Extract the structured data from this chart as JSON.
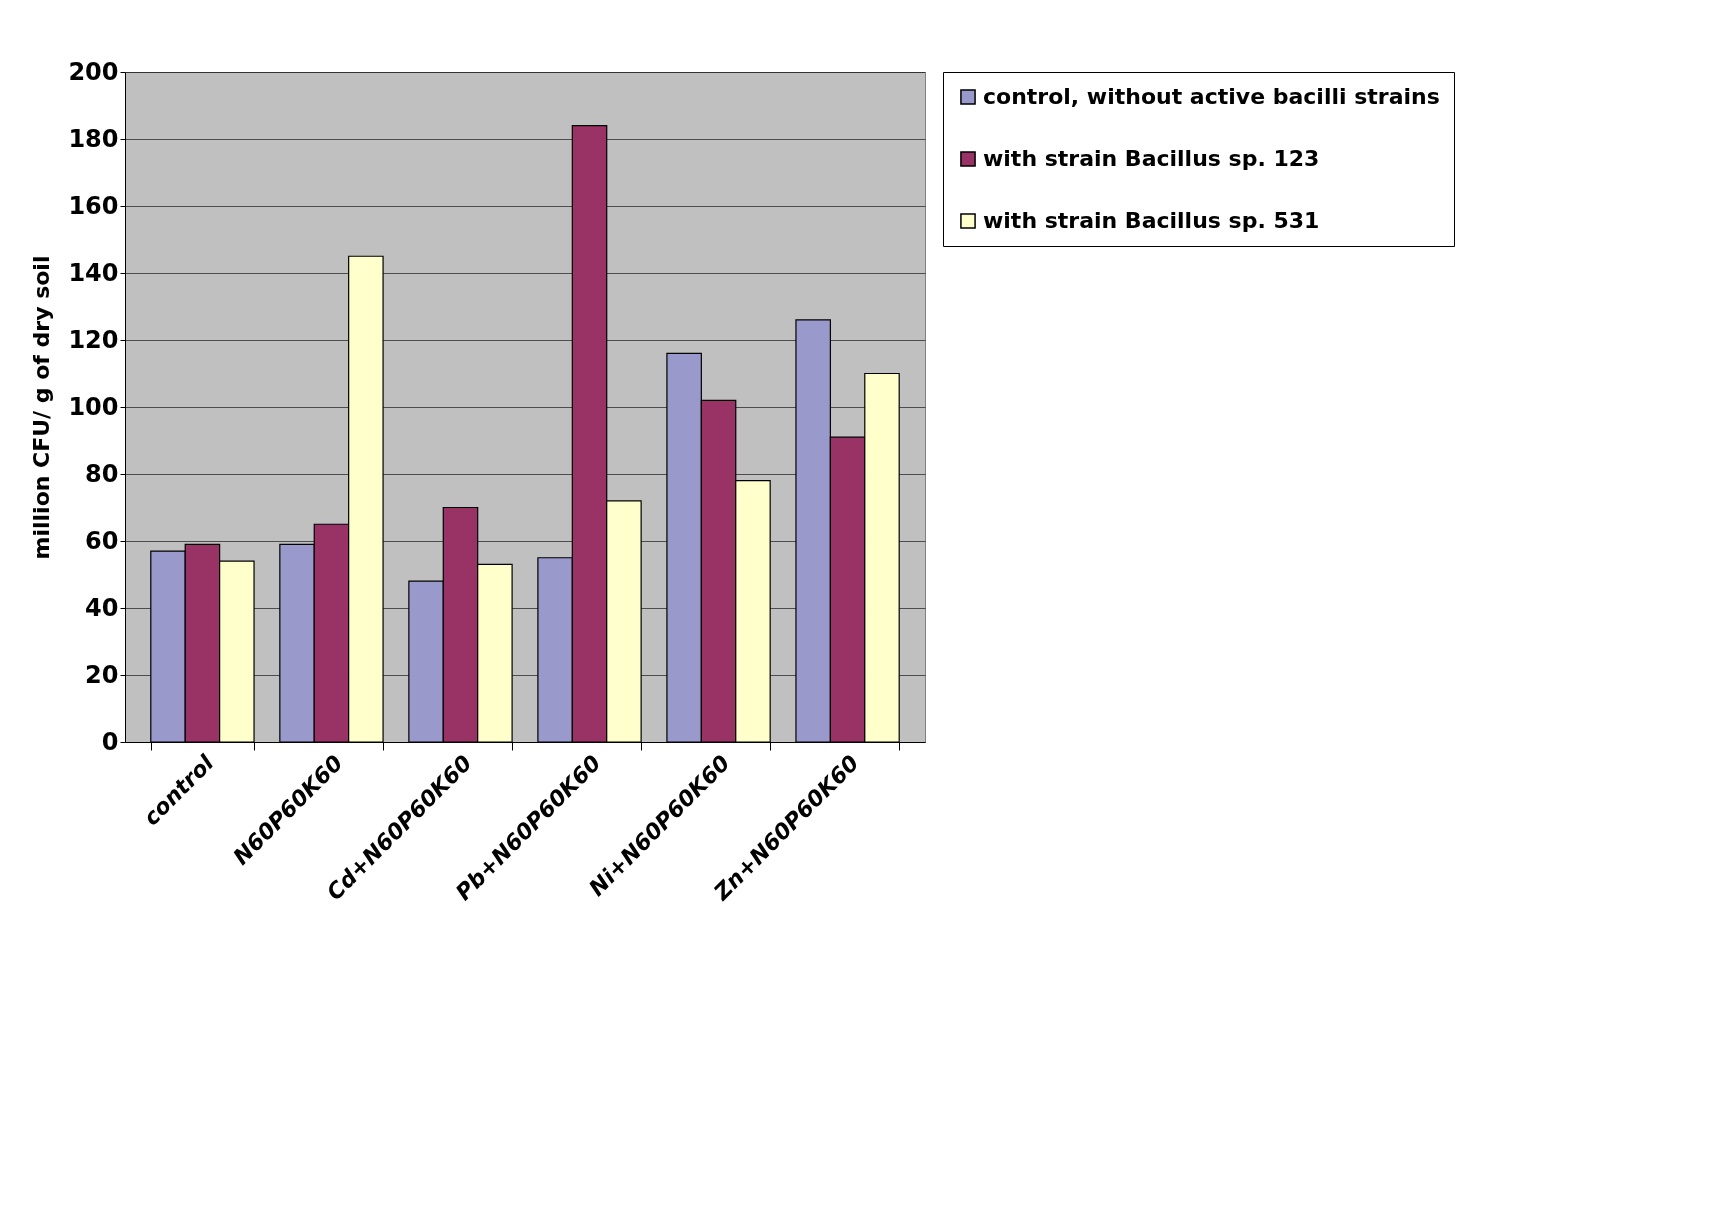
{
  "chart_data": {
    "type": "bar",
    "ylabel": "million CFU/ g of dry soil",
    "categories": [
      "control",
      "N60P60K60",
      "Cd+N60P60K60",
      "Pb+N60P60K60",
      "Ni+N60P60K60",
      "Zn+N60P60K60"
    ],
    "series": [
      {
        "name": "control, without active bacilli strains",
        "color": "#9999cc",
        "values": [
          57,
          59,
          48,
          55,
          116,
          126
        ]
      },
      {
        "name": "with strain Bacillus sp. 123",
        "color": "#993366",
        "values": [
          59,
          65,
          70,
          184,
          102,
          91
        ]
      },
      {
        "name": "with strain Bacillus sp. 531",
        "color": "#ffffcc",
        "values": [
          54,
          145,
          53,
          72,
          78,
          110
        ]
      }
    ],
    "ylim": [
      0,
      200
    ],
    "yticks": [
      0,
      20,
      40,
      60,
      80,
      100,
      120,
      140,
      160,
      180,
      200
    ],
    "grid": "y",
    "legend": "right"
  }
}
